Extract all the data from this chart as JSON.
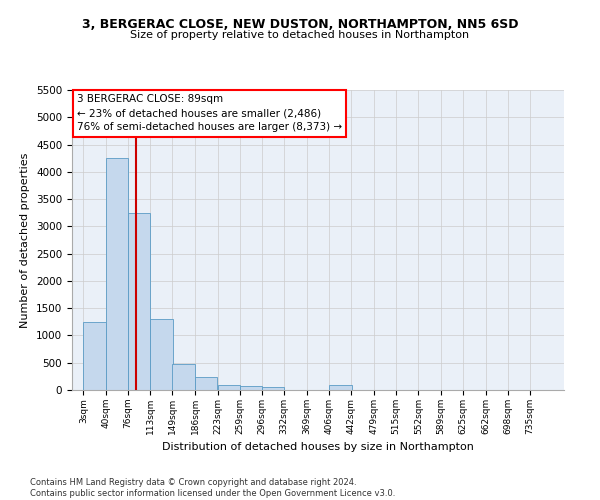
{
  "title_line1": "3, BERGERAC CLOSE, NEW DUSTON, NORTHAMPTON, NN5 6SD",
  "title_line2": "Size of property relative to detached houses in Northampton",
  "xlabel": "Distribution of detached houses by size in Northampton",
  "ylabel": "Number of detached properties",
  "footnote": "Contains HM Land Registry data © Crown copyright and database right 2024.\nContains public sector information licensed under the Open Government Licence v3.0.",
  "annotation_title": "3 BERGERAC CLOSE: 89sqm",
  "annotation_line1": "← 23% of detached houses are smaller (2,486)",
  "annotation_line2": "76% of semi-detached houses are larger (8,373) →",
  "property_size_sqm": 89,
  "bar_color": "#c5d8ed",
  "bar_edge_color": "#5a9bc5",
  "grid_color": "#cccccc",
  "bg_color": "#eaf0f8",
  "marker_color": "#cc0000",
  "categories": [
    "3sqm",
    "40sqm",
    "76sqm",
    "113sqm",
    "149sqm",
    "186sqm",
    "223sqm",
    "259sqm",
    "296sqm",
    "332sqm",
    "369sqm",
    "406sqm",
    "442sqm",
    "479sqm",
    "515sqm",
    "552sqm",
    "589sqm",
    "625sqm",
    "662sqm",
    "698sqm",
    "735sqm"
  ],
  "bin_starts": [
    3,
    40,
    76,
    113,
    149,
    186,
    223,
    259,
    296,
    332,
    369,
    406,
    442,
    479,
    515,
    552,
    589,
    625,
    662,
    698,
    735
  ],
  "bin_width": 37,
  "values": [
    1250,
    4250,
    3250,
    1300,
    475,
    230,
    100,
    70,
    55,
    0,
    0,
    100,
    0,
    0,
    0,
    0,
    0,
    0,
    0,
    0,
    0
  ],
  "ylim": [
    0,
    5500
  ],
  "yticks": [
    0,
    500,
    1000,
    1500,
    2000,
    2500,
    3000,
    3500,
    4000,
    4500,
    5000,
    5500
  ]
}
